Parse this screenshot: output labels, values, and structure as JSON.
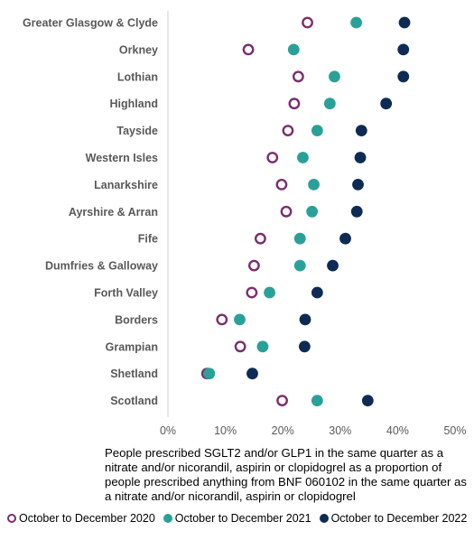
{
  "chart_data": {
    "type": "scatter",
    "categories": [
      "Greater Glasgow & Clyde",
      "Orkney",
      "Lothian",
      "Highland",
      "Tayside",
      "Western Isles",
      "Lanarkshire",
      "Ayrshire & Arran",
      "Fife",
      "Dumfries & Galloway",
      "Forth Valley",
      "Borders",
      "Grampian",
      "Shetland",
      "Scotland"
    ],
    "series": [
      {
        "name": "October to December 2020",
        "color": "#7b2d6e",
        "marker": "hollow-circle",
        "values": [
          24.3,
          14.0,
          22.7,
          22.0,
          20.9,
          18.2,
          19.8,
          20.6,
          16.1,
          15.0,
          14.6,
          9.4,
          12.6,
          6.8,
          19.9
        ]
      },
      {
        "name": "October to December 2021",
        "color": "#2aa198",
        "marker": "filled-circle",
        "values": [
          32.8,
          21.9,
          29.0,
          28.2,
          26.0,
          23.5,
          25.4,
          25.1,
          23.0,
          23.0,
          17.7,
          12.5,
          16.5,
          7.2,
          26.0
        ]
      },
      {
        "name": "October to December 2022",
        "color": "#0e2b54",
        "marker": "filled-circle",
        "values": [
          41.2,
          41.0,
          41.0,
          38.0,
          33.7,
          33.5,
          33.1,
          32.9,
          30.9,
          28.7,
          26.0,
          23.9,
          23.8,
          14.7,
          34.8
        ]
      }
    ],
    "x_ticks": [
      "0%",
      "10%",
      "20%",
      "30%",
      "40%",
      "50%"
    ],
    "xlim": [
      0,
      50
    ],
    "xlabel": "People prescribed SGLT2 and/or GLP1 in the same quarter as a nitrate and/or nicorandil, aspirin or clopidogrel as a proportion of people prescribed anything from BNF 060102 in the same quarter as a nitrate and/or nicorandil, aspirin or clopidogrel",
    "legend_position": "bottom",
    "grid": false
  }
}
